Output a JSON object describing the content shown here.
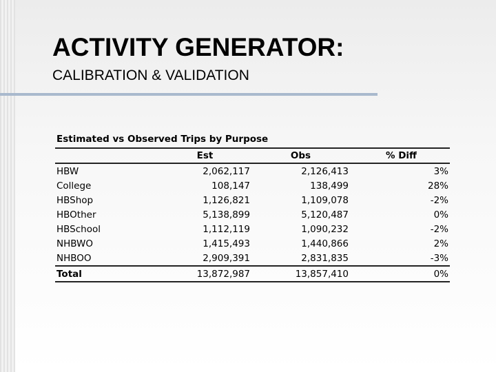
{
  "header": {
    "title": "ACTIVITY GENERATOR:",
    "subtitle": "CALIBRATION & VALIDATION"
  },
  "table": {
    "title": "Estimated vs Observed Trips by Purpose",
    "columns": [
      "Est",
      "Obs",
      "% Diff"
    ],
    "rows": [
      [
        "HBW",
        "2,062,117",
        "2,126,413",
        "3%"
      ],
      [
        "College",
        "108,147",
        "138,499",
        "28%"
      ],
      [
        "HBShop",
        "1,126,821",
        "1,109,078",
        "-2%"
      ],
      [
        "HBOther",
        "5,138,899",
        "5,120,487",
        "0%"
      ],
      [
        "HBSchool",
        "1,112,119",
        "1,090,232",
        "-2%"
      ],
      [
        "NHBWO",
        "1,415,493",
        "1,440,866",
        "2%"
      ],
      [
        "NHBOO",
        "2,909,391",
        "2,831,835",
        "-3%"
      ]
    ],
    "total": [
      "Total",
      "13,872,987",
      "13,857,410",
      "0%"
    ]
  }
}
